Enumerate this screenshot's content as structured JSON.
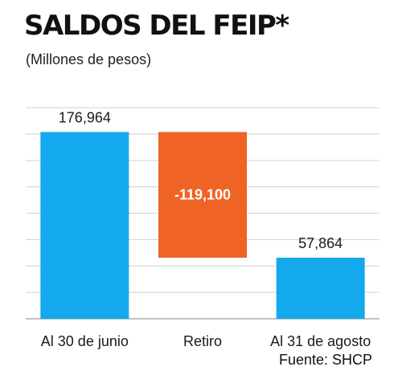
{
  "title": "SALDOS DEL FEIP*",
  "subtitle": "(Millones de pesos)",
  "source": "Fuente: SHCP",
  "colors": {
    "total": "#14a9ec",
    "decrease": "#ef6324",
    "grid": "#cfcfcf"
  },
  "chart_data": {
    "type": "bar",
    "subtype": "waterfall",
    "categories": [
      "Al 30 de junio",
      "Retiro",
      "Al 31 de agosto"
    ],
    "values": [
      176964,
      -119100,
      57864
    ],
    "data_labels": [
      "176,964",
      "-119,100",
      "57,864"
    ],
    "kinds": [
      "total",
      "decrease",
      "total"
    ],
    "xlabel": "",
    "ylabel": "",
    "ylim": [
      0,
      210000
    ],
    "grid": true,
    "legend": "none"
  }
}
